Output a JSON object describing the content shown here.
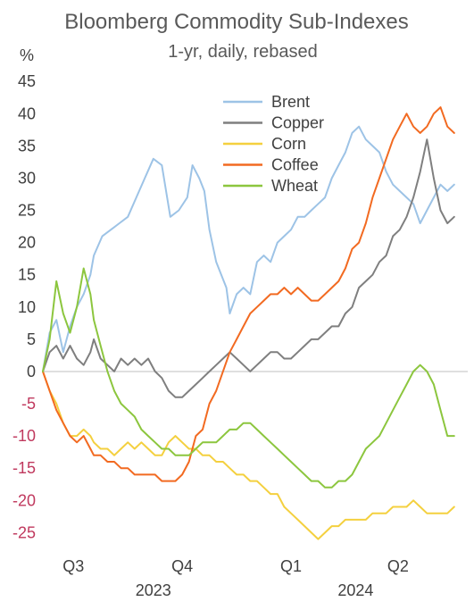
{
  "chart_data": {
    "type": "line",
    "title": "Bloomberg Commodity Sub-Indexes",
    "subtitle": "1-yr, daily, rebased",
    "y_unit": "%",
    "ylim": [
      -28,
      46
    ],
    "yticks": [
      45,
      40,
      35,
      30,
      25,
      20,
      15,
      10,
      5,
      0,
      -5,
      -10,
      -15,
      -20,
      -25
    ],
    "xlim": [
      0,
      250
    ],
    "x_quarter_ticks": [
      {
        "label": "Q3",
        "x": 18
      },
      {
        "label": "Q4",
        "x": 82
      },
      {
        "label": "Q1",
        "x": 146
      },
      {
        "label": "Q2",
        "x": 209
      }
    ],
    "x_year_ticks": [
      {
        "label": "2023",
        "x": 65
      },
      {
        "label": "2024",
        "x": 184
      }
    ],
    "grid": false,
    "legend_position": "top-center",
    "colors": {
      "positive_tick": "#404040",
      "negative_tick": "#c0395e",
      "axis": "#bfbfbf"
    },
    "series": [
      {
        "name": "Brent",
        "color": "#9dc3e6",
        "points": [
          [
            0,
            0
          ],
          [
            4,
            6
          ],
          [
            8,
            8
          ],
          [
            12,
            3
          ],
          [
            16,
            7
          ],
          [
            20,
            10
          ],
          [
            24,
            12
          ],
          [
            28,
            15
          ],
          [
            30,
            18
          ],
          [
            35,
            21
          ],
          [
            40,
            22
          ],
          [
            45,
            23
          ],
          [
            50,
            24
          ],
          [
            55,
            27
          ],
          [
            60,
            30
          ],
          [
            65,
            33
          ],
          [
            70,
            32
          ],
          [
            75,
            24
          ],
          [
            80,
            25
          ],
          [
            85,
            27
          ],
          [
            88,
            32
          ],
          [
            92,
            30
          ],
          [
            95,
            28
          ],
          [
            98,
            22
          ],
          [
            102,
            17
          ],
          [
            105,
            15
          ],
          [
            108,
            13
          ],
          [
            110,
            9
          ],
          [
            114,
            12
          ],
          [
            118,
            13
          ],
          [
            122,
            12
          ],
          [
            126,
            17
          ],
          [
            130,
            18
          ],
          [
            134,
            17
          ],
          [
            138,
            20
          ],
          [
            142,
            21
          ],
          [
            146,
            22
          ],
          [
            150,
            24
          ],
          [
            154,
            24
          ],
          [
            158,
            25
          ],
          [
            162,
            26
          ],
          [
            166,
            27
          ],
          [
            170,
            30
          ],
          [
            174,
            32
          ],
          [
            178,
            34
          ],
          [
            182,
            37
          ],
          [
            186,
            38
          ],
          [
            190,
            36
          ],
          [
            194,
            35
          ],
          [
            198,
            34
          ],
          [
            202,
            31
          ],
          [
            206,
            29
          ],
          [
            210,
            28
          ],
          [
            214,
            27
          ],
          [
            218,
            26
          ],
          [
            222,
            23
          ],
          [
            226,
            25
          ],
          [
            230,
            27
          ],
          [
            234,
            29
          ],
          [
            238,
            28
          ],
          [
            242,
            29
          ]
        ]
      },
      {
        "name": "Copper",
        "color": "#7f7f7f",
        "points": [
          [
            0,
            0
          ],
          [
            4,
            3
          ],
          [
            8,
            4
          ],
          [
            12,
            2
          ],
          [
            16,
            4
          ],
          [
            20,
            2
          ],
          [
            24,
            1
          ],
          [
            28,
            3
          ],
          [
            30,
            5
          ],
          [
            34,
            2
          ],
          [
            38,
            1
          ],
          [
            42,
            0
          ],
          [
            46,
            2
          ],
          [
            50,
            1
          ],
          [
            54,
            2
          ],
          [
            58,
            1
          ],
          [
            62,
            2
          ],
          [
            66,
            0
          ],
          [
            70,
            -1
          ],
          [
            74,
            -3
          ],
          [
            78,
            -4
          ],
          [
            82,
            -4
          ],
          [
            86,
            -3
          ],
          [
            90,
            -2
          ],
          [
            94,
            -1
          ],
          [
            98,
            0
          ],
          [
            102,
            1
          ],
          [
            106,
            2
          ],
          [
            110,
            3
          ],
          [
            114,
            2
          ],
          [
            118,
            1
          ],
          [
            122,
            0
          ],
          [
            126,
            1
          ],
          [
            130,
            2
          ],
          [
            134,
            3
          ],
          [
            138,
            3
          ],
          [
            142,
            2
          ],
          [
            146,
            2
          ],
          [
            150,
            3
          ],
          [
            154,
            4
          ],
          [
            158,
            5
          ],
          [
            162,
            5
          ],
          [
            166,
            6
          ],
          [
            170,
            7
          ],
          [
            174,
            7
          ],
          [
            178,
            9
          ],
          [
            182,
            10
          ],
          [
            186,
            13
          ],
          [
            190,
            14
          ],
          [
            194,
            15
          ],
          [
            198,
            17
          ],
          [
            202,
            18
          ],
          [
            206,
            21
          ],
          [
            210,
            22
          ],
          [
            214,
            24
          ],
          [
            218,
            27
          ],
          [
            222,
            31
          ],
          [
            226,
            36
          ],
          [
            230,
            30
          ],
          [
            234,
            25
          ],
          [
            238,
            23
          ],
          [
            242,
            24
          ]
        ]
      },
      {
        "name": "Corn",
        "color": "#f4d03f",
        "points": [
          [
            0,
            0
          ],
          [
            4,
            -3
          ],
          [
            8,
            -5
          ],
          [
            12,
            -8
          ],
          [
            16,
            -10
          ],
          [
            20,
            -10
          ],
          [
            24,
            -9
          ],
          [
            28,
            -10
          ],
          [
            30,
            -11
          ],
          [
            34,
            -12
          ],
          [
            38,
            -12
          ],
          [
            42,
            -13
          ],
          [
            46,
            -12
          ],
          [
            50,
            -11
          ],
          [
            54,
            -12
          ],
          [
            58,
            -11
          ],
          [
            62,
            -12
          ],
          [
            66,
            -13
          ],
          [
            70,
            -13
          ],
          [
            74,
            -11
          ],
          [
            78,
            -10
          ],
          [
            82,
            -11
          ],
          [
            86,
            -12
          ],
          [
            90,
            -12
          ],
          [
            94,
            -13
          ],
          [
            98,
            -13
          ],
          [
            102,
            -14
          ],
          [
            106,
            -14
          ],
          [
            110,
            -15
          ],
          [
            114,
            -16
          ],
          [
            118,
            -16
          ],
          [
            122,
            -17
          ],
          [
            126,
            -17
          ],
          [
            130,
            -18
          ],
          [
            134,
            -19
          ],
          [
            138,
            -19
          ],
          [
            142,
            -21
          ],
          [
            146,
            -22
          ],
          [
            150,
            -23
          ],
          [
            154,
            -24
          ],
          [
            158,
            -25
          ],
          [
            162,
            -26
          ],
          [
            166,
            -25
          ],
          [
            170,
            -24
          ],
          [
            174,
            -24
          ],
          [
            178,
            -23
          ],
          [
            182,
            -23
          ],
          [
            186,
            -23
          ],
          [
            190,
            -23
          ],
          [
            194,
            -22
          ],
          [
            198,
            -22
          ],
          [
            202,
            -22
          ],
          [
            206,
            -21
          ],
          [
            210,
            -21
          ],
          [
            214,
            -21
          ],
          [
            218,
            -20
          ],
          [
            222,
            -21
          ],
          [
            226,
            -22
          ],
          [
            230,
            -22
          ],
          [
            234,
            -22
          ],
          [
            238,
            -22
          ],
          [
            242,
            -21
          ]
        ]
      },
      {
        "name": "Coffee",
        "color": "#f26a21",
        "points": [
          [
            0,
            0
          ],
          [
            4,
            -3
          ],
          [
            8,
            -6
          ],
          [
            12,
            -8
          ],
          [
            16,
            -10
          ],
          [
            20,
            -11
          ],
          [
            24,
            -10
          ],
          [
            28,
            -12
          ],
          [
            30,
            -13
          ],
          [
            34,
            -13
          ],
          [
            38,
            -14
          ],
          [
            42,
            -14
          ],
          [
            46,
            -15
          ],
          [
            50,
            -15
          ],
          [
            54,
            -16
          ],
          [
            58,
            -16
          ],
          [
            62,
            -16
          ],
          [
            66,
            -16
          ],
          [
            70,
            -17
          ],
          [
            74,
            -17
          ],
          [
            78,
            -17
          ],
          [
            82,
            -16
          ],
          [
            86,
            -14
          ],
          [
            90,
            -10
          ],
          [
            94,
            -9
          ],
          [
            98,
            -5
          ],
          [
            102,
            -3
          ],
          [
            106,
            0
          ],
          [
            110,
            3
          ],
          [
            114,
            5
          ],
          [
            118,
            7
          ],
          [
            122,
            9
          ],
          [
            126,
            10
          ],
          [
            130,
            11
          ],
          [
            134,
            12
          ],
          [
            138,
            12
          ],
          [
            142,
            13
          ],
          [
            146,
            12
          ],
          [
            150,
            13
          ],
          [
            154,
            12
          ],
          [
            158,
            11
          ],
          [
            162,
            11
          ],
          [
            166,
            12
          ],
          [
            170,
            13
          ],
          [
            174,
            14
          ],
          [
            178,
            16
          ],
          [
            182,
            19
          ],
          [
            186,
            20
          ],
          [
            190,
            23
          ],
          [
            194,
            27
          ],
          [
            198,
            30
          ],
          [
            202,
            33
          ],
          [
            206,
            36
          ],
          [
            210,
            38
          ],
          [
            214,
            40
          ],
          [
            218,
            38
          ],
          [
            222,
            37
          ],
          [
            226,
            38
          ],
          [
            230,
            40
          ],
          [
            234,
            41
          ],
          [
            238,
            38
          ],
          [
            242,
            37
          ]
        ]
      },
      {
        "name": "Wheat",
        "color": "#8cc63e",
        "points": [
          [
            0,
            0
          ],
          [
            4,
            5
          ],
          [
            8,
            14
          ],
          [
            12,
            9
          ],
          [
            16,
            6
          ],
          [
            20,
            10
          ],
          [
            24,
            16
          ],
          [
            28,
            12
          ],
          [
            30,
            8
          ],
          [
            34,
            4
          ],
          [
            38,
            0
          ],
          [
            42,
            -3
          ],
          [
            46,
            -5
          ],
          [
            50,
            -6
          ],
          [
            54,
            -7
          ],
          [
            58,
            -9
          ],
          [
            62,
            -10
          ],
          [
            66,
            -11
          ],
          [
            70,
            -12
          ],
          [
            74,
            -12
          ],
          [
            78,
            -13
          ],
          [
            82,
            -13
          ],
          [
            86,
            -13
          ],
          [
            90,
            -12
          ],
          [
            94,
            -11
          ],
          [
            98,
            -11
          ],
          [
            102,
            -11
          ],
          [
            106,
            -10
          ],
          [
            110,
            -9
          ],
          [
            114,
            -9
          ],
          [
            118,
            -8
          ],
          [
            122,
            -8
          ],
          [
            126,
            -9
          ],
          [
            130,
            -10
          ],
          [
            134,
            -11
          ],
          [
            138,
            -12
          ],
          [
            142,
            -13
          ],
          [
            146,
            -14
          ],
          [
            150,
            -15
          ],
          [
            154,
            -16
          ],
          [
            158,
            -17
          ],
          [
            162,
            -17
          ],
          [
            166,
            -18
          ],
          [
            170,
            -18
          ],
          [
            174,
            -17
          ],
          [
            178,
            -17
          ],
          [
            182,
            -16
          ],
          [
            186,
            -14
          ],
          [
            190,
            -12
          ],
          [
            194,
            -11
          ],
          [
            198,
            -10
          ],
          [
            202,
            -8
          ],
          [
            206,
            -6
          ],
          [
            210,
            -4
          ],
          [
            214,
            -2
          ],
          [
            218,
            0
          ],
          [
            222,
            1
          ],
          [
            226,
            0
          ],
          [
            230,
            -2
          ],
          [
            234,
            -6
          ],
          [
            238,
            -10
          ],
          [
            242,
            -10
          ]
        ]
      }
    ]
  }
}
